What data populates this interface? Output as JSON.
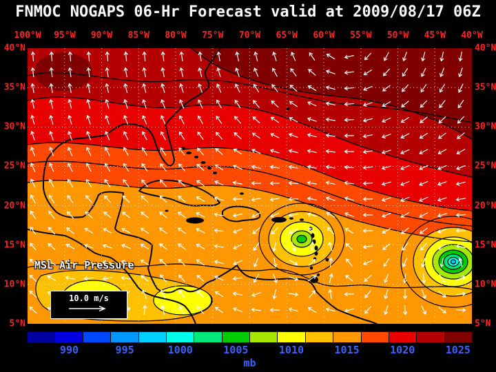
{
  "title": "FNMOC NOGAPS 06-Hr Forecast valid at 2009/08/17 06Z",
  "map": {
    "field_label": "MSL Air Pressure",
    "wind_scale_label": "10.0 m/s",
    "lon_labels": [
      "100°W",
      "95°W",
      "90°W",
      "85°W",
      "80°W",
      "75°W",
      "70°W",
      "65°W",
      "60°W",
      "55°W",
      "50°W",
      "45°W",
      "40°W"
    ],
    "lat_labels": [
      "40°N",
      "35°N",
      "30°N",
      "25°N",
      "20°N",
      "15°N",
      "10°N",
      "5°N"
    ]
  },
  "colorbar": {
    "unit": "mb",
    "tick_labels": [
      "990",
      "995",
      "1000",
      "1005",
      "1010",
      "1015",
      "1020",
      "1025"
    ],
    "colors": [
      "#0000A0",
      "#0000E0",
      "#0048FF",
      "#0098FF",
      "#00D0FF",
      "#00FFE8",
      "#00E878",
      "#00CC00",
      "#A8E800",
      "#FFFF00",
      "#FFC000",
      "#FF9800",
      "#FF4800",
      "#E80000",
      "#B40000",
      "#800000"
    ]
  },
  "colors": {
    "background": "#000000",
    "title_text": "#FFFFFF",
    "axis_text": "#FF2222",
    "colorbar_text": "#3A62FF",
    "grid_line": "#FFFFFF",
    "wind_arrow": "#FFFFFF",
    "coastline": "#000000",
    "map_label_text": "#FFFFFF"
  },
  "chart_data": {
    "type": "heatmap",
    "title": "FNMOC NOGAPS 06-Hr Forecast valid at 2009/08/17 06Z",
    "field": "Mean sea level air pressure with surface wind vectors",
    "unit": "mb",
    "lon_ticks_deg_west": [
      100,
      95,
      90,
      85,
      80,
      75,
      70,
      65,
      60,
      55,
      50,
      45,
      40
    ],
    "lat_ticks_deg_north": [
      40,
      35,
      30,
      25,
      20,
      15,
      10,
      5
    ],
    "grid_interval_deg": 5,
    "colorbar_tick_values_mb": [
      990,
      995,
      1000,
      1005,
      1010,
      1015,
      1020,
      1025
    ],
    "colorbar_segment_width_mb": 2.5,
    "wind_reference_m_per_s": 10.0,
    "features": [
      {
        "name": "subtropical-high",
        "approx_lon_deg_w": 55,
        "approx_lat_deg_n": 38,
        "approx_pressure_mb": 1026
      },
      {
        "name": "tropical-low-east-of-lesser-antilles",
        "approx_lon_deg_w": 63,
        "approx_lat_deg_n": 15.5,
        "approx_pressure_mb": 1006
      },
      {
        "name": "hurricane-central-atlantic",
        "approx_lon_deg_w": 42.5,
        "approx_lat_deg_n": 12.5,
        "approx_pressure_mb": 997
      },
      {
        "name": "low-over-central-america-pacific",
        "approx_lon_deg_w": 90,
        "approx_lat_deg_n": 9,
        "approx_pressure_mb": 1009
      }
    ]
  }
}
